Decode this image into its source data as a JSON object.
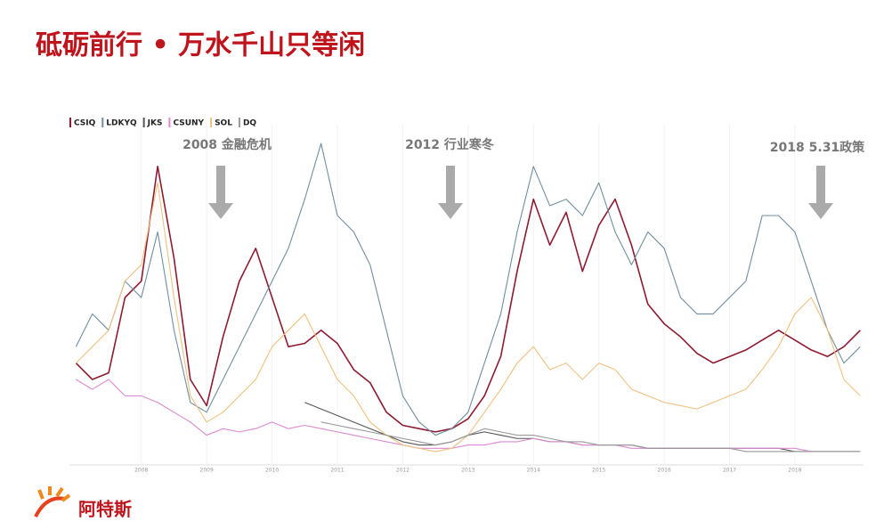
{
  "title": "砥砺前行 • 万水千山只等闲",
  "logo": "阿特斯",
  "chart_data": {
    "type": "line",
    "annotations": [
      "2008 金融危机",
      "2012 行业寒冬",
      "2018 5.31政策"
    ],
    "x": [
      2007,
      2007.25,
      2007.5,
      2007.75,
      2008,
      2008.25,
      2008.5,
      2008.75,
      2009,
      2009.25,
      2009.5,
      2009.75,
      2010,
      2010.25,
      2010.5,
      2010.75,
      2011,
      2011.25,
      2011.5,
      2011.75,
      2012,
      2012.25,
      2012.5,
      2012.75,
      2013,
      2013.25,
      2013.5,
      2013.75,
      2014,
      2014.25,
      2014.5,
      2014.75,
      2015,
      2015.25,
      2015.5,
      2015.75,
      2016,
      2016.25,
      2016.5,
      2016.75,
      2017,
      2017.25,
      2017.5,
      2017.75,
      2018,
      2018.25,
      2018.5,
      2018.75,
      2019
    ],
    "xlim": [
      2006.9,
      2019.05
    ],
    "xticks": [
      2008,
      2009,
      2010,
      2011,
      2012,
      2013,
      2014,
      2015,
      2016,
      2017,
      2018
    ],
    "ylim": [
      0,
      100
    ],
    "series": [
      {
        "name": "CSIQ",
        "color": "#8e1b32",
        "values": [
          30,
          25,
          27,
          50,
          55,
          90,
          62,
          25,
          17,
          38,
          55,
          65,
          50,
          35,
          36,
          40,
          36,
          28,
          24,
          15,
          11,
          10,
          9,
          10,
          13,
          20,
          32,
          58,
          80,
          66,
          76,
          58,
          72,
          80,
          66,
          48,
          42,
          38,
          33,
          30,
          32,
          34,
          37,
          40,
          37,
          34,
          32,
          35,
          40
        ]
      },
      {
        "name": "LDKYQ",
        "color": "#6f8fa0",
        "values": [
          35,
          45,
          40,
          55,
          50,
          70,
          40,
          18,
          15,
          25,
          35,
          45,
          55,
          65,
          80,
          97,
          75,
          70,
          60,
          40,
          20,
          12,
          8,
          10,
          15,
          30,
          45,
          70,
          90,
          78,
          80,
          75,
          85,
          70,
          60,
          70,
          65,
          50,
          45,
          45,
          50,
          55,
          75,
          75,
          70,
          55,
          40,
          30,
          35
        ]
      },
      {
        "name": "JKS",
        "color": "#555555",
        "values": [
          null,
          null,
          null,
          null,
          null,
          null,
          null,
          null,
          null,
          null,
          null,
          null,
          null,
          null,
          18,
          16,
          14,
          12,
          10,
          8,
          6,
          5,
          5,
          6,
          8,
          9,
          8,
          7,
          7,
          6,
          6,
          5,
          5,
          5,
          5,
          4,
          4,
          4,
          4,
          4,
          4,
          4,
          4,
          4,
          3,
          3,
          3,
          3,
          3
        ]
      },
      {
        "name": "CSUNY",
        "color": "#d98ad0",
        "values": [
          25,
          22,
          25,
          20,
          20,
          18,
          15,
          12,
          8,
          10,
          9,
          10,
          12,
          10,
          11,
          10,
          9,
          8,
          7,
          6,
          5,
          4,
          4,
          4,
          5,
          5,
          6,
          6,
          7,
          6,
          6,
          5,
          5,
          5,
          4,
          4,
          4,
          4,
          4,
          4,
          4,
          4,
          4,
          4,
          4,
          3,
          3,
          3,
          3
        ]
      },
      {
        "name": "SOL",
        "color": "#f0c080",
        "values": [
          30,
          35,
          40,
          55,
          60,
          85,
          50,
          20,
          12,
          15,
          20,
          25,
          35,
          40,
          45,
          35,
          25,
          20,
          12,
          8,
          5,
          4,
          3,
          4,
          8,
          15,
          22,
          30,
          35,
          28,
          30,
          25,
          30,
          28,
          22,
          20,
          18,
          17,
          16,
          18,
          20,
          22,
          28,
          35,
          45,
          50,
          40,
          25,
          20
        ]
      },
      {
        "name": "DQ",
        "color": "#999999",
        "values": [
          null,
          null,
          null,
          null,
          null,
          null,
          null,
          null,
          null,
          null,
          null,
          null,
          null,
          null,
          null,
          12,
          11,
          10,
          9,
          8,
          7,
          6,
          5,
          6,
          8,
          10,
          9,
          8,
          8,
          7,
          6,
          6,
          5,
          5,
          5,
          4,
          4,
          4,
          4,
          4,
          4,
          3,
          3,
          3,
          3,
          3,
          3,
          3,
          3
        ]
      }
    ]
  }
}
